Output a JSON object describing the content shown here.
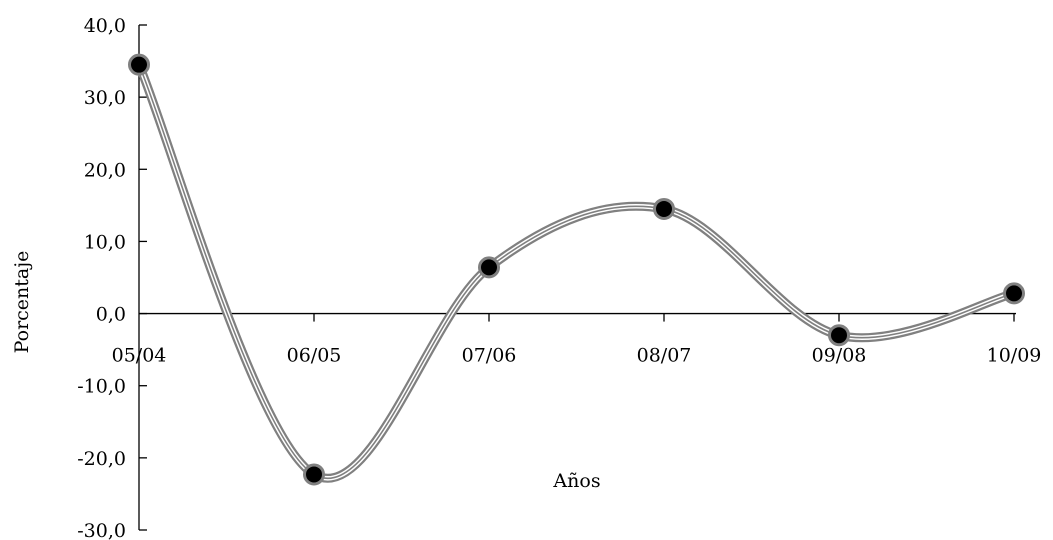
{
  "chart_data": {
    "type": "line",
    "title": "",
    "xlabel": "Años",
    "ylabel": "Porcentaje",
    "categories": [
      "05/04",
      "06/05",
      "07/06",
      "08/07",
      "09/08",
      "10/09"
    ],
    "series": [
      {
        "values": [
          34.5,
          -22.3,
          6.4,
          14.5,
          -3.0,
          2.8
        ]
      }
    ],
    "ylim": [
      -30,
      40
    ],
    "yticks": [
      "-30,0",
      "-20,0",
      "-10,0",
      "0,0",
      "10,0",
      "20,0",
      "30,0",
      "40,0"
    ],
    "grid": false,
    "smooth": true,
    "colors": {
      "line": "#808080",
      "marker": "#000000"
    }
  }
}
